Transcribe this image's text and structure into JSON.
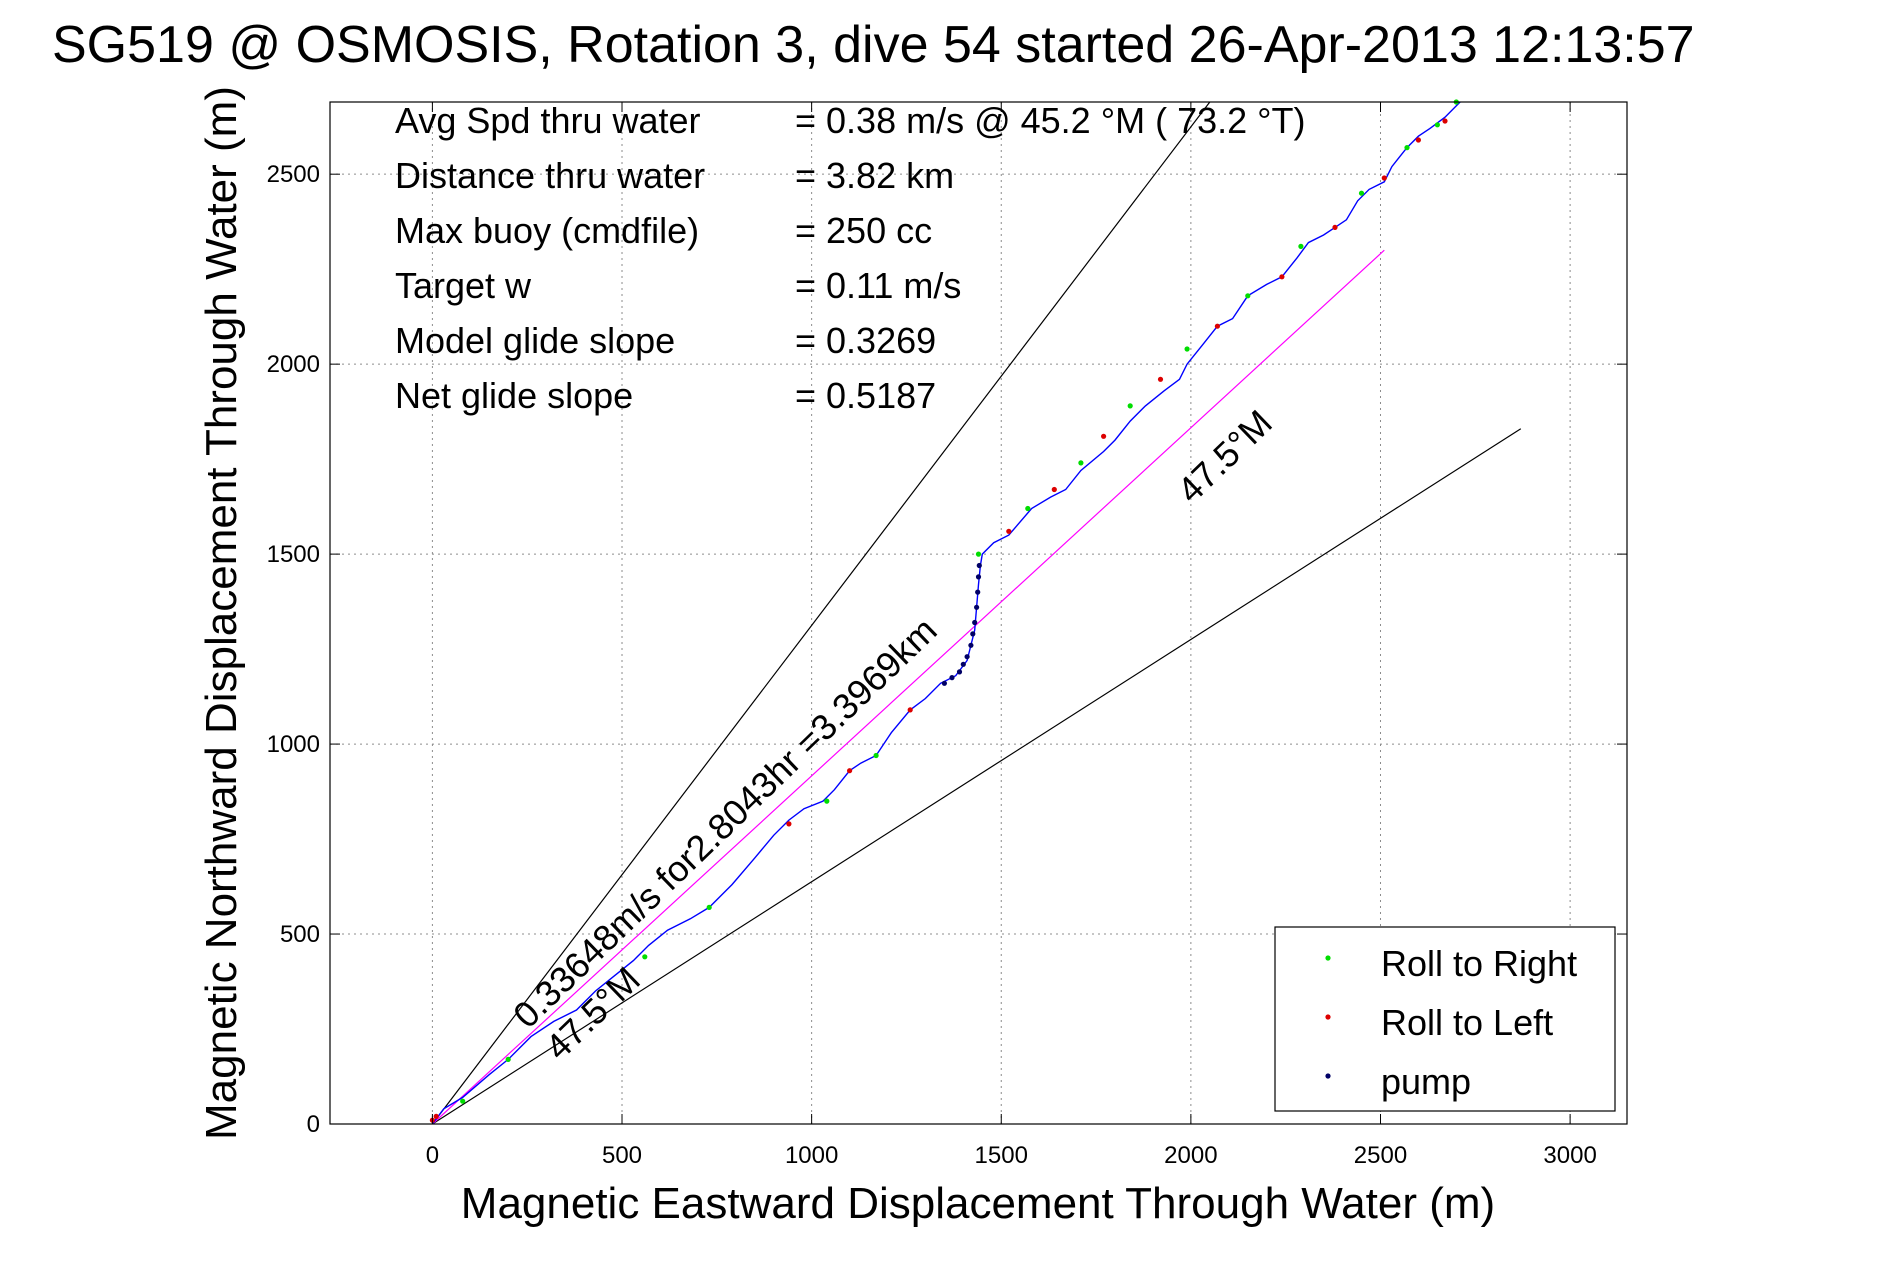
{
  "chart_data": {
    "type": "line",
    "title": "SG519 @ OSMOSIS, Rotation 3, dive 54 started 26-Apr-2013 12:13:57",
    "xlabel": "Magnetic Eastward Displacement Through Water (m)",
    "ylabel": "Magnetic Northward Displacement Through Water (m)",
    "xlim": [
      -270,
      3150
    ],
    "ylim": [
      0,
      2690
    ],
    "xticks": [
      0,
      500,
      1000,
      1500,
      2000,
      2500,
      3000
    ],
    "xtick_labels": [
      "0",
      "500",
      "1000",
      "1500",
      "2000",
      "2500",
      "3000"
    ],
    "yticks": [
      0,
      500,
      1000,
      1500,
      2000,
      2500
    ],
    "ytick_labels": [
      "0",
      "500",
      "1000",
      "1500",
      "2000",
      "2500"
    ],
    "grid": true,
    "legend_position": "bottom-right",
    "stats": [
      {
        "label": "Avg Spd thru water",
        "value": "=  0.38 m/s @  45.2 °M ( 73.2 °T)"
      },
      {
        "label": "Distance thru water",
        "value": "=  3.82 km"
      },
      {
        "label": "Max buoy (cmdfile)",
        "value": "= 250 cc"
      },
      {
        "label": "Target w",
        "value": "= 0.11 m/s"
      },
      {
        "label": "Model glide slope",
        "value": "= 0.3269"
      },
      {
        "label": "Net glide slope",
        "value": "= 0.5187"
      }
    ],
    "annotations": {
      "speed_text": "0.33648m/s for2.8043hr =3.3969km",
      "heading_label_upper": "47.5°M",
      "heading_label_lower": "47.5°M"
    },
    "series": [
      {
        "name": "track",
        "color": "#0000ff",
        "x": [
          0,
          30,
          80,
          150,
          200,
          260,
          320,
          380,
          430,
          480,
          530,
          570,
          620,
          680,
          730,
          790,
          850,
          900,
          940,
          980,
          1030,
          1060,
          1100,
          1130,
          1170,
          1210,
          1260,
          1300,
          1340,
          1380,
          1410,
          1430,
          1440,
          1445,
          1450,
          1480,
          1520,
          1580,
          1630,
          1670,
          1710,
          1770,
          1800,
          1840,
          1880,
          1930,
          1970,
          1990,
          2030,
          2070,
          2110,
          2150,
          2200,
          2240,
          2280,
          2310,
          2350,
          2380,
          2410,
          2440,
          2470,
          2510,
          2530,
          2570,
          2600,
          2630,
          2670,
          2710
        ],
        "y": [
          0,
          40,
          70,
          130,
          170,
          230,
          270,
          300,
          350,
          390,
          430,
          470,
          510,
          540,
          570,
          630,
          700,
          760,
          800,
          830,
          850,
          880,
          930,
          950,
          970,
          1030,
          1090,
          1120,
          1160,
          1180,
          1220,
          1300,
          1420,
          1470,
          1500,
          1530,
          1550,
          1620,
          1650,
          1670,
          1720,
          1770,
          1800,
          1850,
          1890,
          1930,
          1960,
          2000,
          2050,
          2100,
          2120,
          2180,
          2210,
          2230,
          2280,
          2320,
          2340,
          2360,
          2380,
          2430,
          2460,
          2480,
          2520,
          2570,
          2600,
          2620,
          2650,
          2690
        ]
      },
      {
        "name": "Roll to Right",
        "color": "#00dd00",
        "x": [
          80,
          200,
          560,
          730,
          1040,
          1170,
          1440,
          1570,
          1710,
          1840,
          1990,
          2150,
          2290,
          2450,
          2570,
          2650,
          2700
        ],
        "y": [
          60,
          170,
          440,
          570,
          850,
          970,
          1500,
          1620,
          1740,
          1890,
          2040,
          2180,
          2310,
          2450,
          2570,
          2630,
          2690
        ]
      },
      {
        "name": "Roll to Left",
        "color": "#dd0000",
        "x": [
          0,
          10,
          940,
          1100,
          1260,
          1520,
          1640,
          1770,
          1920,
          2070,
          2240,
          2380,
          2510,
          2600,
          2670
        ],
        "y": [
          10,
          20,
          790,
          930,
          1090,
          1560,
          1670,
          1810,
          1960,
          2100,
          2230,
          2360,
          2490,
          2590,
          2640
        ]
      },
      {
        "name": "pump",
        "color": "#000066",
        "x": [
          1350,
          1370,
          1390,
          1400,
          1410,
          1420,
          1425,
          1430,
          1435,
          1438,
          1440,
          1442
        ],
        "y": [
          1160,
          1175,
          1190,
          1210,
          1230,
          1260,
          1290,
          1320,
          1360,
          1400,
          1440,
          1470
        ]
      },
      {
        "name": "heading line",
        "color": "#ff00ff",
        "x": [
          0,
          2510
        ],
        "y": [
          0,
          2300
        ]
      },
      {
        "name": "envelope upper",
        "color": "#000000",
        "x": [
          0,
          2050
        ],
        "y": [
          0,
          2690
        ]
      },
      {
        "name": "envelope lower",
        "color": "#000000",
        "x": [
          0,
          2870
        ],
        "y": [
          0,
          1830
        ]
      }
    ],
    "legend": [
      {
        "label": "Roll to Right",
        "color": "#00dd00"
      },
      {
        "label": "Roll to Left",
        "color": "#dd0000"
      },
      {
        "label": "pump",
        "color": "#000066"
      }
    ]
  }
}
